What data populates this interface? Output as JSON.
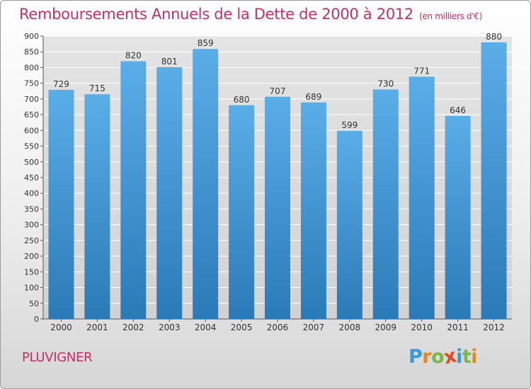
{
  "chart_data": {
    "type": "bar",
    "title": "Remboursements Annuels de la Dette de 2000 à 2012",
    "unit_label": "(en milliers d'€)",
    "categories": [
      "2000",
      "2001",
      "2002",
      "2003",
      "2004",
      "2005",
      "2006",
      "2007",
      "2008",
      "2009",
      "2010",
      "2011",
      "2012"
    ],
    "values": [
      729,
      715,
      820,
      801,
      859,
      680,
      707,
      689,
      599,
      730,
      771,
      646,
      880
    ],
    "yticks": [
      0,
      50,
      100,
      150,
      200,
      250,
      300,
      350,
      400,
      450,
      500,
      550,
      600,
      650,
      700,
      750,
      800,
      850,
      900
    ],
    "ylim": [
      0,
      900
    ],
    "grid": true,
    "bar_color_top": "#5aaee8",
    "bar_color_bottom": "#2a7ab8"
  },
  "footer": {
    "city": "PLUVIGNER",
    "logo_letters": [
      "P",
      "r",
      "o",
      "x",
      "i",
      "t",
      "i"
    ],
    "logo_colors": [
      "#3a9ad9",
      "#e8881a",
      "#7ab648",
      "#e84a1a",
      "#3a9ad9",
      "#7ab648",
      "#e8881a"
    ]
  },
  "colors": {
    "accent": "#c0306a",
    "grid": "#ffffff",
    "axis": "#555555"
  }
}
